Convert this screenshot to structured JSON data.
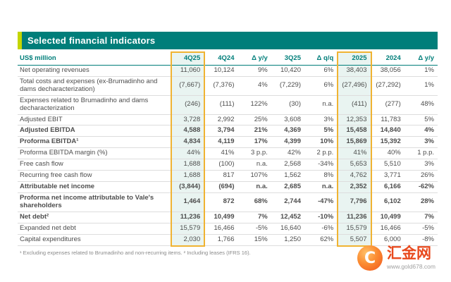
{
  "title": "Selected financial indicators",
  "table": {
    "highlight_columns": [
      1,
      6
    ],
    "columns": [
      "US$ million",
      "4Q25",
      "4Q24",
      "Δ y/y",
      "3Q25",
      "Δ q/q",
      "2025",
      "2024",
      "Δ y/y"
    ],
    "rows": [
      {
        "label": "Net operating revenues",
        "bold": false,
        "values": [
          "11,060",
          "10,124",
          "9%",
          "10,420",
          "6%",
          "38,403",
          "38,056",
          "1%"
        ]
      },
      {
        "label": "Total costs and expenses (ex-Brumadinho and dams decharacterization)",
        "bold": false,
        "values": [
          "(7,667)",
          "(7,376)",
          "4%",
          "(7,229)",
          "6%",
          "(27,496)",
          "(27,292)",
          "1%"
        ]
      },
      {
        "label": "Expenses related to Brumadinho and dams decharacterization",
        "bold": false,
        "values": [
          "(246)",
          "(111)",
          "122%",
          "(30)",
          "n.a.",
          "(411)",
          "(277)",
          "48%"
        ]
      },
      {
        "label": "Adjusted EBIT",
        "bold": false,
        "values": [
          "3,728",
          "2,992",
          "25%",
          "3,608",
          "3%",
          "12,353",
          "11,783",
          "5%"
        ]
      },
      {
        "label": "Adjusted EBITDA",
        "bold": true,
        "values": [
          "4,588",
          "3,794",
          "21%",
          "4,369",
          "5%",
          "15,458",
          "14,840",
          "4%"
        ]
      },
      {
        "label": "Proforma EBITDA¹",
        "bold": true,
        "values": [
          "4,834",
          "4,119",
          "17%",
          "4,399",
          "10%",
          "15,869",
          "15,392",
          "3%"
        ]
      },
      {
        "label": "Proforma EBITDA margin (%)",
        "bold": false,
        "values": [
          "44%",
          "41%",
          "3 p.p.",
          "42%",
          "2 p.p.",
          "41%",
          "40%",
          "1 p.p."
        ]
      },
      {
        "label": "Free cash flow",
        "bold": false,
        "values": [
          "1,688",
          "(100)",
          "n.a.",
          "2,568",
          "-34%",
          "5,653",
          "5,510",
          "3%"
        ]
      },
      {
        "label": "Recurring free cash flow",
        "bold": false,
        "values": [
          "1,688",
          "817",
          "107%",
          "1,562",
          "8%",
          "4,762",
          "3,771",
          "26%"
        ]
      },
      {
        "label": "Attributable net income",
        "bold": true,
        "values": [
          "(3,844)",
          "(694)",
          "n.a.",
          "2,685",
          "n.a.",
          "2,352",
          "6,166",
          "-62%"
        ]
      },
      {
        "label": "Proforma net income attributable to Vale's shareholders",
        "bold": true,
        "values": [
          "1,464",
          "872",
          "68%",
          "2,744",
          "-47%",
          "7,796",
          "6,102",
          "28%"
        ]
      },
      {
        "label": "Net debt²",
        "bold": true,
        "values": [
          "11,236",
          "10,499",
          "7%",
          "12,452",
          "-10%",
          "11,236",
          "10,499",
          "7%"
        ]
      },
      {
        "label": "Expanded net debt",
        "bold": false,
        "values": [
          "15,579",
          "16,466",
          "-5%",
          "16,640",
          "-6%",
          "15,579",
          "16,466",
          "-5%"
        ]
      },
      {
        "label": "Capital expenditures",
        "bold": false,
        "values": [
          "2,030",
          "1,766",
          "15%",
          "1,250",
          "62%",
          "5,507",
          "6,000",
          "-8%"
        ]
      }
    ]
  },
  "footnote": "¹ Excluding expenses related to Brumadinho and non-recurring items. ² Including leases (IFRS 16).",
  "watermark": {
    "brand": "汇金网",
    "url": "www.gold678.com",
    "logo_glyph": "C"
  },
  "colors": {
    "teal": "#007e7a",
    "lime_accent": "#c4d600",
    "highlight_bg": "#e9f4f1",
    "highlight_border": "#f0b332",
    "text": "#4d4d4d",
    "logo_orange": "#f0541e",
    "brand_red": "#e8491d"
  }
}
